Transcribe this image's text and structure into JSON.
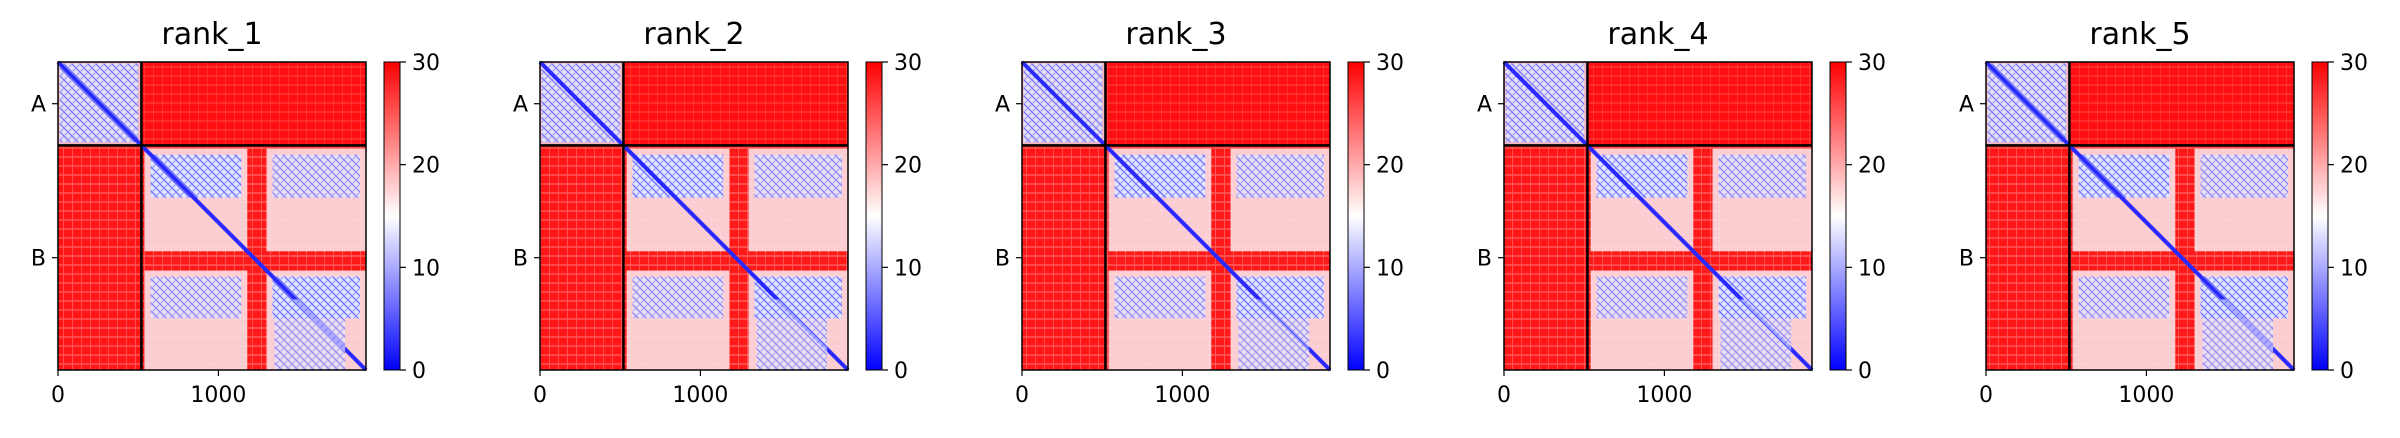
{
  "chart_data": [
    {
      "type": "heatmap",
      "title": "rank_1",
      "x_ticks": [
        0,
        1000
      ],
      "y_ticks": [
        "A",
        "B"
      ],
      "length": 1920,
      "chain_boundary": 520,
      "colorbar": {
        "min": 0,
        "max": 30,
        "ticks": [
          0,
          10,
          20,
          30
        ]
      },
      "colormap": [
        "#0000ff",
        "#ffffff",
        "#ff0000"
      ]
    },
    {
      "type": "heatmap",
      "title": "rank_2",
      "x_ticks": [
        0,
        1000
      ],
      "y_ticks": [
        "A",
        "B"
      ],
      "length": 1920,
      "chain_boundary": 520,
      "colorbar": {
        "min": 0,
        "max": 30,
        "ticks": [
          0,
          10,
          20,
          30
        ]
      },
      "colormap": [
        "#0000ff",
        "#ffffff",
        "#ff0000"
      ]
    },
    {
      "type": "heatmap",
      "title": "rank_3",
      "x_ticks": [
        0,
        1000
      ],
      "y_ticks": [
        "A",
        "B"
      ],
      "length": 1920,
      "chain_boundary": 520,
      "colorbar": {
        "min": 0,
        "max": 30,
        "ticks": [
          0,
          10,
          20,
          30
        ]
      },
      "colormap": [
        "#0000ff",
        "#ffffff",
        "#ff0000"
      ]
    },
    {
      "type": "heatmap",
      "title": "rank_4",
      "x_ticks": [
        0,
        1000
      ],
      "y_ticks": [
        "A",
        "B"
      ],
      "length": 1920,
      "chain_boundary": 520,
      "colorbar": {
        "min": 0,
        "max": 30,
        "ticks": [
          0,
          10,
          20,
          30
        ]
      },
      "colormap": [
        "#0000ff",
        "#ffffff",
        "#ff0000"
      ]
    },
    {
      "type": "heatmap",
      "title": "rank_5",
      "x_ticks": [
        0,
        1000
      ],
      "y_ticks": [
        "A",
        "B"
      ],
      "length": 1920,
      "chain_boundary": 520,
      "colorbar": {
        "min": 0,
        "max": 30,
        "ticks": [
          0,
          10,
          20,
          30
        ]
      },
      "colormap": [
        "#0000ff",
        "#ffffff",
        "#ff0000"
      ]
    }
  ]
}
